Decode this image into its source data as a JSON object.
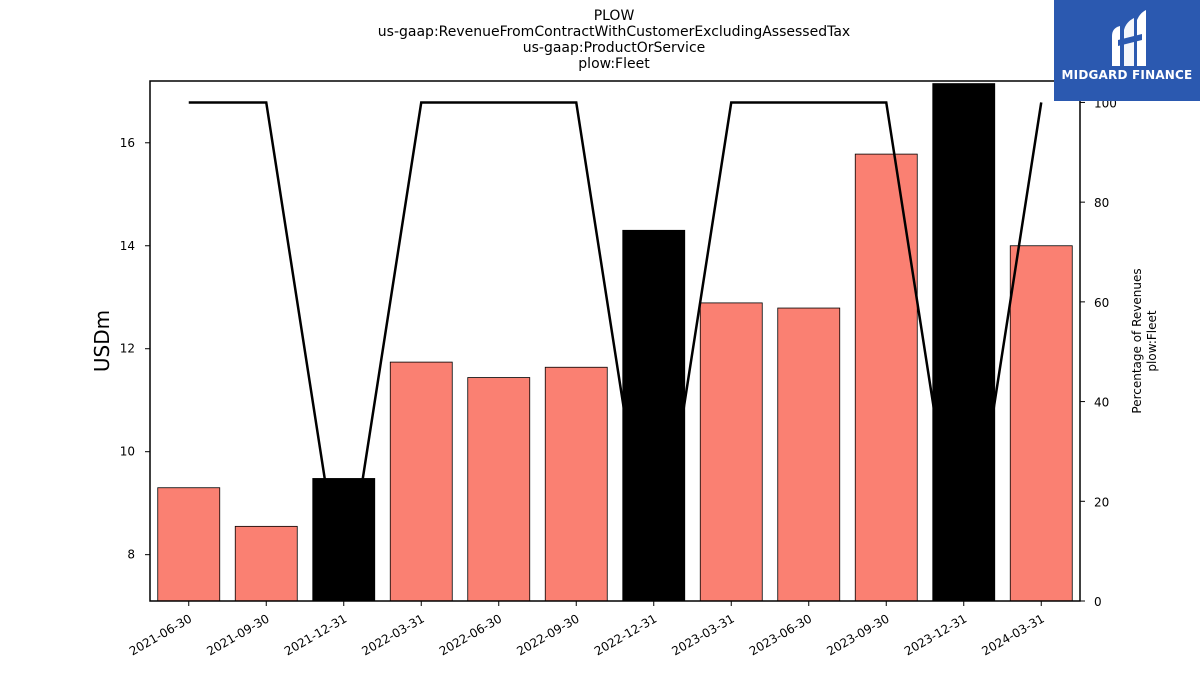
{
  "title_lines": [
    "PLOW",
    "us-gaap:RevenueFromContractWithCustomerExcludingAssessedTax",
    "us-gaap:ProductOrService",
    "plow:Fleet"
  ],
  "logo": {
    "text": "MIDGARD FINANCE",
    "color": "#2b59b0"
  },
  "chart_data": {
    "type": "bar",
    "categories": [
      "2021-06-30",
      "2021-09-30",
      "2021-12-31",
      "2022-03-31",
      "2022-06-30",
      "2022-09-30",
      "2022-12-31",
      "2023-03-31",
      "2023-06-30",
      "2023-09-30",
      "2023-12-31",
      "2024-03-31"
    ],
    "series": [
      {
        "type": "bar",
        "axis": "left",
        "values": [
          9.3,
          8.55,
          9.48,
          11.74,
          11.44,
          11.64,
          14.3,
          12.89,
          12.79,
          15.78,
          17.15,
          14.0
        ],
        "highlight": [
          false,
          false,
          true,
          false,
          false,
          false,
          true,
          false,
          false,
          false,
          true,
          false
        ]
      },
      {
        "type": "line",
        "axis": "right",
        "values": [
          100,
          100,
          0,
          100,
          100,
          100,
          0,
          100,
          100,
          100,
          0,
          100
        ]
      }
    ],
    "ylabel": "USDm",
    "ylabel_right": [
      "Percentage of Revenues",
      "plow:Fleet"
    ],
    "ylim": [
      7.1,
      17.2
    ],
    "ylim_right": [
      0,
      104.3
    ],
    "yticks": [
      8,
      10,
      12,
      14,
      16
    ],
    "yticks_right": [
      0,
      20,
      40,
      60,
      80,
      100
    ],
    "colors": {
      "bar": "#fa8072",
      "bar_highlight": "#000000",
      "line": "#000000"
    },
    "grid": false,
    "legend": "none"
  }
}
